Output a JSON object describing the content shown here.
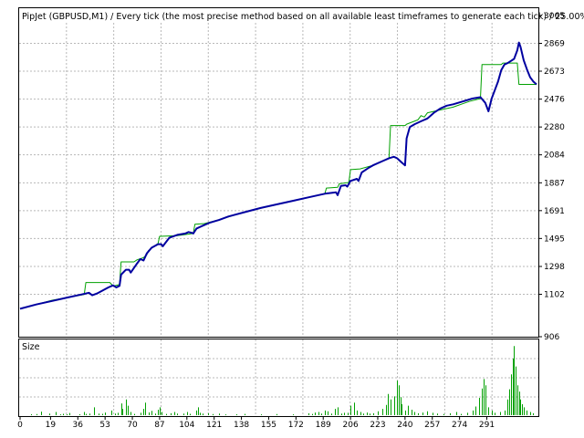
{
  "chart_data": [
    {
      "type": "line",
      "title": "PipJet (GBPUSD,M1) / Every tick (the most precise method based on all available least timeframes to generate each tick) / 25.00%",
      "ylim": [
        906,
        3065
      ],
      "y_ticks": [
        3065,
        2869,
        2673,
        2476,
        2280,
        2084,
        1887,
        1691,
        1495,
        1298,
        1102
      ],
      "grid": true,
      "series": [
        {
          "color": "#0000a0",
          "points": [
            [
              0,
              1000
            ],
            [
              10,
              1030
            ],
            [
              20,
              1055
            ],
            [
              30,
              1080
            ],
            [
              38,
              1100
            ],
            [
              43,
              1112
            ],
            [
              45,
              1095
            ],
            [
              48,
              1108
            ],
            [
              55,
              1150
            ],
            [
              58,
              1165
            ],
            [
              60,
              1150
            ],
            [
              62,
              1162
            ],
            [
              63,
              1240
            ],
            [
              66,
              1275
            ],
            [
              68,
              1275
            ],
            [
              69,
              1255
            ],
            [
              73,
              1320
            ],
            [
              75,
              1350
            ],
            [
              77,
              1340
            ],
            [
              79,
              1390
            ],
            [
              82,
              1430
            ],
            [
              86,
              1455
            ],
            [
              88,
              1455
            ],
            [
              89,
              1440
            ],
            [
              93,
              1500
            ],
            [
              98,
              1520
            ],
            [
              103,
              1530
            ],
            [
              105,
              1540
            ],
            [
              107,
              1535
            ],
            [
              108,
              1530
            ],
            [
              110,
              1565
            ],
            [
              113,
              1580
            ],
            [
              118,
              1605
            ],
            [
              124,
              1625
            ],
            [
              130,
              1650
            ],
            [
              140,
              1680
            ],
            [
              150,
              1710
            ],
            [
              160,
              1735
            ],
            [
              170,
              1760
            ],
            [
              180,
              1785
            ],
            [
              190,
              1810
            ],
            [
              197,
              1820
            ],
            [
              198,
              1800
            ],
            [
              200,
              1865
            ],
            [
              203,
              1870
            ],
            [
              204,
              1860
            ],
            [
              206,
              1900
            ],
            [
              210,
              1915
            ],
            [
              211,
              1900
            ],
            [
              213,
              1960
            ],
            [
              217,
              1990
            ],
            [
              220,
              2010
            ],
            [
              226,
              2040
            ],
            [
              230,
              2060
            ],
            [
              233,
              2070
            ],
            [
              235,
              2060
            ],
            [
              238,
              2030
            ],
            [
              240,
              2010
            ],
            [
              241,
              2200
            ],
            [
              243,
              2280
            ],
            [
              246,
              2300
            ],
            [
              250,
              2320
            ],
            [
              254,
              2340
            ],
            [
              258,
              2380
            ],
            [
              262,
              2410
            ],
            [
              266,
              2430
            ],
            [
              270,
              2440
            ],
            [
              276,
              2460
            ],
            [
              282,
              2480
            ],
            [
              287,
              2490
            ],
            [
              290,
              2450
            ],
            [
              292,
              2390
            ],
            [
              294,
              2480
            ],
            [
              296,
              2540
            ],
            [
              298,
              2600
            ],
            [
              300,
              2680
            ],
            [
              302,
              2720
            ],
            [
              304,
              2730
            ],
            [
              306,
              2745
            ],
            [
              308,
              2760
            ],
            [
              310,
              2820
            ],
            [
              311,
              2875
            ],
            [
              312,
              2845
            ],
            [
              314,
              2750
            ],
            [
              316,
              2685
            ],
            [
              318,
              2630
            ],
            [
              320,
              2600
            ],
            [
              322,
              2580
            ]
          ]
        },
        {
          "color": "#00a000",
          "points": [
            [
              0,
              1000
            ],
            [
              10,
              1030
            ],
            [
              20,
              1060
            ],
            [
              30,
              1080
            ],
            [
              40,
              1100
            ],
            [
              41,
              1185
            ],
            [
              56,
              1185
            ],
            [
              58,
              1160
            ],
            [
              62,
              1170
            ],
            [
              63,
              1330
            ],
            [
              71,
              1330
            ],
            [
              73,
              1345
            ],
            [
              77,
              1360
            ],
            [
              79,
              1380
            ],
            [
              80,
              1410
            ],
            [
              86,
              1460
            ],
            [
              87,
              1510
            ],
            [
              98,
              1515
            ],
            [
              108,
              1530
            ],
            [
              109,
              1595
            ],
            [
              115,
              1600
            ],
            [
              125,
              1630
            ],
            [
              140,
              1680
            ],
            [
              160,
              1735
            ],
            [
              180,
              1785
            ],
            [
              190,
              1810
            ],
            [
              191,
              1850
            ],
            [
              198,
              1855
            ],
            [
              199,
              1880
            ],
            [
              205,
              1890
            ],
            [
              206,
              1980
            ],
            [
              212,
              1985
            ],
            [
              220,
              2010
            ],
            [
              230,
              2060
            ],
            [
              231,
              2290
            ],
            [
              240,
              2290
            ],
            [
              241,
              2300
            ],
            [
              248,
              2330
            ],
            [
              250,
              2360
            ],
            [
              252,
              2350
            ],
            [
              254,
              2380
            ],
            [
              260,
              2395
            ],
            [
              270,
              2420
            ],
            [
              280,
              2460
            ],
            [
              287,
              2480
            ],
            [
              288,
              2720
            ],
            [
              300,
              2720
            ],
            [
              301,
              2730
            ],
            [
              310,
              2730
            ],
            [
              311,
              2580
            ],
            [
              322,
              2580
            ]
          ]
        }
      ]
    },
    {
      "type": "bar",
      "title": "Size",
      "xlabel_ticks": [
        0,
        19,
        36,
        53,
        70,
        87,
        104,
        121,
        138,
        155,
        172,
        189,
        206,
        223,
        240,
        257,
        274,
        291
      ],
      "y_ticks": [
        906
      ],
      "ylim": [
        0,
        906
      ],
      "grid": true,
      "color": "#00a000",
      "bars": [
        [
          7,
          12
        ],
        [
          10,
          15
        ],
        [
          13,
          45
        ],
        [
          18,
          20
        ],
        [
          22,
          40
        ],
        [
          25,
          10
        ],
        [
          27,
          18
        ],
        [
          29,
          12
        ],
        [
          31,
          28
        ],
        [
          37,
          12
        ],
        [
          40,
          40
        ],
        [
          41,
          16
        ],
        [
          43,
          20
        ],
        [
          46,
          100
        ],
        [
          49,
          20
        ],
        [
          51,
          18
        ],
        [
          53,
          34
        ],
        [
          57,
          60
        ],
        [
          59,
          20
        ],
        [
          61,
          30
        ],
        [
          63,
          150
        ],
        [
          64,
          80
        ],
        [
          66,
          200
        ],
        [
          67,
          120
        ],
        [
          69,
          40
        ],
        [
          71,
          16
        ],
        [
          75,
          30
        ],
        [
          77,
          80
        ],
        [
          78,
          160
        ],
        [
          80,
          35
        ],
        [
          82,
          55
        ],
        [
          84,
          20
        ],
        [
          86,
          70
        ],
        [
          87,
          100
        ],
        [
          88,
          40
        ],
        [
          91,
          16
        ],
        [
          94,
          24
        ],
        [
          96,
          40
        ],
        [
          98,
          20
        ],
        [
          102,
          20
        ],
        [
          104,
          40
        ],
        [
          106,
          18
        ],
        [
          110,
          60
        ],
        [
          111,
          100
        ],
        [
          112,
          30
        ],
        [
          114,
          20
        ],
        [
          117,
          24
        ],
        [
          120,
          14
        ],
        [
          124,
          20
        ],
        [
          128,
          10
        ],
        [
          135,
          12
        ],
        [
          140,
          16
        ],
        [
          150,
          10
        ],
        [
          160,
          14
        ],
        [
          170,
          10
        ],
        [
          180,
          24
        ],
        [
          182,
          16
        ],
        [
          184,
          34
        ],
        [
          186,
          40
        ],
        [
          188,
          20
        ],
        [
          190,
          60
        ],
        [
          192,
          50
        ],
        [
          194,
          20
        ],
        [
          196,
          80
        ],
        [
          198,
          100
        ],
        [
          200,
          20
        ],
        [
          202,
          30
        ],
        [
          204,
          30
        ],
        [
          206,
          120
        ],
        [
          208,
          160
        ],
        [
          210,
          60
        ],
        [
          212,
          40
        ],
        [
          214,
          20
        ],
        [
          216,
          34
        ],
        [
          218,
          20
        ],
        [
          220,
          24
        ],
        [
          223,
          50
        ],
        [
          226,
          80
        ],
        [
          228,
          130
        ],
        [
          229,
          270
        ],
        [
          231,
          200
        ],
        [
          233,
          240
        ],
        [
          235,
          440
        ],
        [
          236,
          380
        ],
        [
          237,
          230
        ],
        [
          238,
          140
        ],
        [
          240,
          60
        ],
        [
          242,
          120
        ],
        [
          244,
          70
        ],
        [
          246,
          40
        ],
        [
          248,
          24
        ],
        [
          251,
          34
        ],
        [
          254,
          50
        ],
        [
          257,
          30
        ],
        [
          260,
          20
        ],
        [
          264,
          14
        ],
        [
          268,
          24
        ],
        [
          272,
          40
        ],
        [
          275,
          16
        ],
        [
          279,
          30
        ],
        [
          282,
          60
        ],
        [
          284,
          110
        ],
        [
          286,
          220
        ],
        [
          288,
          340
        ],
        [
          289,
          460
        ],
        [
          290,
          380
        ],
        [
          292,
          100
        ],
        [
          294,
          60
        ],
        [
          296,
          30
        ],
        [
          299,
          40
        ],
        [
          302,
          60
        ],
        [
          304,
          200
        ],
        [
          305,
          330
        ],
        [
          306,
          520
        ],
        [
          307,
          720
        ],
        [
          308,
          880
        ],
        [
          309,
          620
        ],
        [
          310,
          380
        ],
        [
          311,
          300
        ],
        [
          312,
          200
        ],
        [
          313,
          140
        ],
        [
          314,
          100
        ],
        [
          316,
          60
        ],
        [
          318,
          40
        ],
        [
          320,
          24
        ]
      ]
    }
  ]
}
